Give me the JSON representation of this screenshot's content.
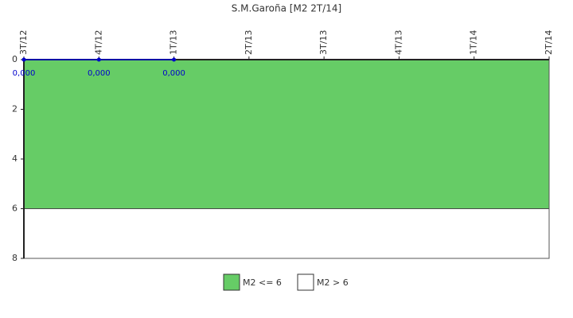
{
  "chart_data": {
    "type": "line",
    "title": "S.M.Garoña [M2 2T/14]",
    "categories": [
      "3T/12",
      "4T/12",
      "1T/13",
      "2T/13",
      "3T/13",
      "4T/13",
      "1T/14",
      "2T/14"
    ],
    "series": [
      {
        "color": "#0000cc",
        "values": [
          0,
          0,
          0,
          null,
          null,
          null,
          null,
          null
        ],
        "value_labels": [
          "0,000",
          "0,000",
          "0,000",
          null,
          null,
          null,
          null,
          null
        ]
      }
    ],
    "bands": [
      {
        "name": "M2 <= 6",
        "color": "#66cc66",
        "range": [
          0,
          6
        ]
      },
      {
        "name": "M2 > 6",
        "color": "#ffffff",
        "range": [
          6,
          8
        ]
      }
    ],
    "ylim": [
      0,
      8
    ],
    "yticks": [
      0,
      2,
      4,
      6,
      8
    ],
    "y_inverted": true
  }
}
